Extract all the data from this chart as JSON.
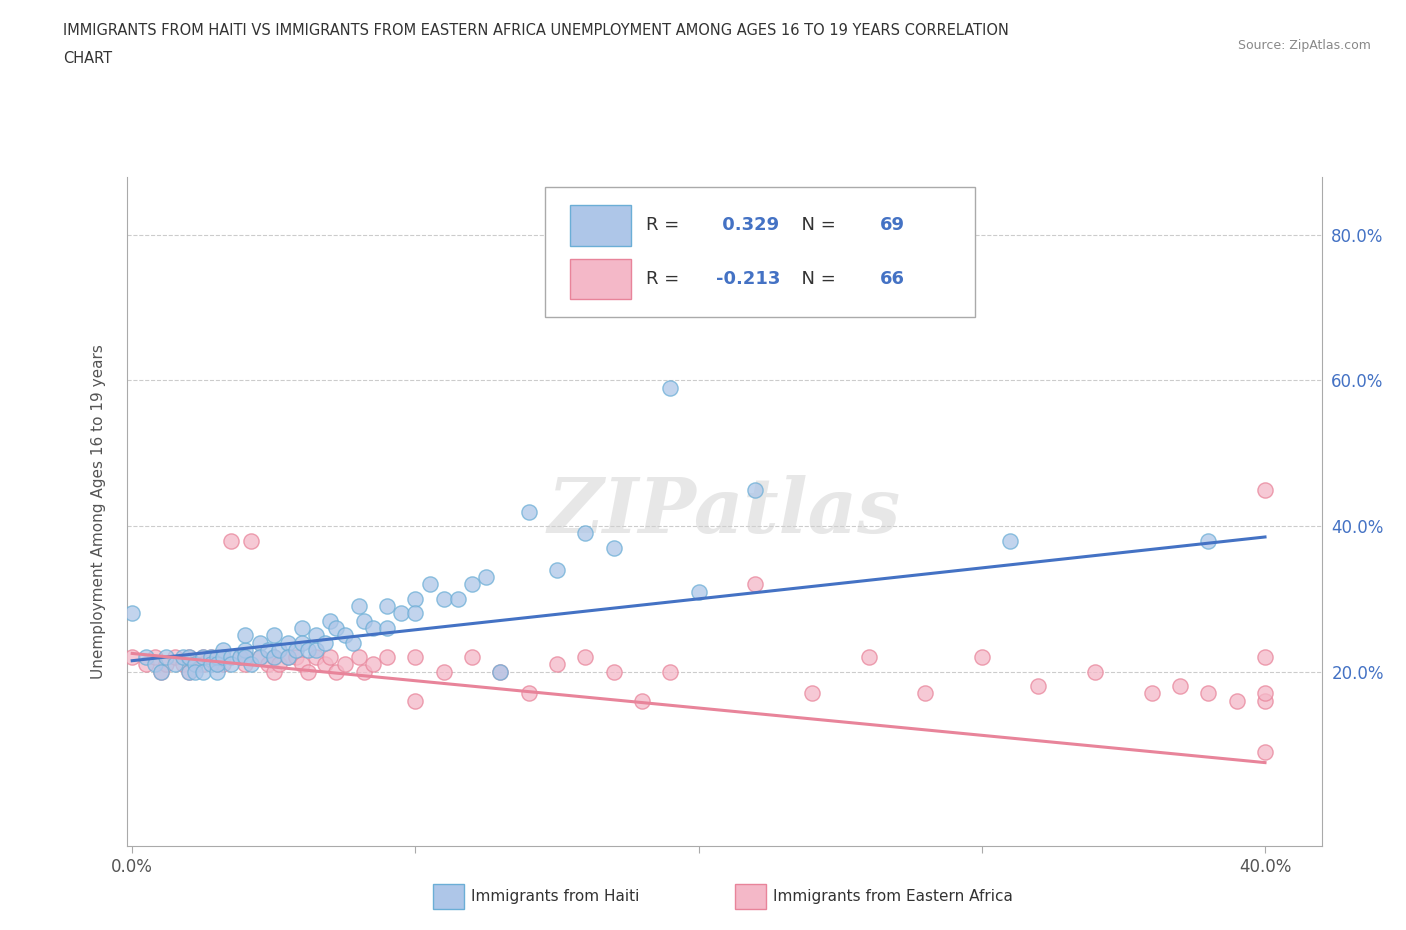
{
  "title_line1": "IMMIGRANTS FROM HAITI VS IMMIGRANTS FROM EASTERN AFRICA UNEMPLOYMENT AMONG AGES 16 TO 19 YEARS CORRELATION",
  "title_line2": "CHART",
  "source": "Source: ZipAtlas.com",
  "ylabel": "Unemployment Among Ages 16 to 19 years",
  "xlim": [
    -0.002,
    0.42
  ],
  "ylim": [
    -0.04,
    0.88
  ],
  "xtick_positions": [
    0.0,
    0.1,
    0.2,
    0.3,
    0.4
  ],
  "xtick_labels": [
    "0.0%",
    "",
    "",
    "",
    "40.0%"
  ],
  "ytick_positions": [
    0.2,
    0.4,
    0.6,
    0.8
  ],
  "ytick_labels": [
    "20.0%",
    "40.0%",
    "60.0%",
    "80.0%"
  ],
  "R_haiti": 0.329,
  "N_haiti": 69,
  "R_east_africa": -0.213,
  "N_east_africa": 66,
  "haiti_color": "#aec6e8",
  "haiti_edge_color": "#6baed6",
  "haiti_line_color": "#4472c4",
  "east_africa_color": "#f4b8c8",
  "east_africa_edge_color": "#e8849a",
  "east_africa_line_color": "#e8849a",
  "watermark": "ZIPatlas",
  "legend_label_haiti": "Immigrants from Haiti",
  "legend_label_east_africa": "Immigrants from Eastern Africa",
  "haiti_scatter_x": [
    0.0,
    0.005,
    0.008,
    0.01,
    0.012,
    0.015,
    0.018,
    0.02,
    0.02,
    0.022,
    0.022,
    0.025,
    0.025,
    0.028,
    0.028,
    0.03,
    0.03,
    0.03,
    0.032,
    0.032,
    0.035,
    0.035,
    0.038,
    0.04,
    0.04,
    0.04,
    0.042,
    0.045,
    0.045,
    0.048,
    0.05,
    0.05,
    0.052,
    0.055,
    0.055,
    0.058,
    0.06,
    0.06,
    0.062,
    0.065,
    0.065,
    0.068,
    0.07,
    0.072,
    0.075,
    0.078,
    0.08,
    0.082,
    0.085,
    0.09,
    0.09,
    0.095,
    0.1,
    0.1,
    0.105,
    0.11,
    0.115,
    0.12,
    0.125,
    0.13,
    0.14,
    0.15,
    0.16,
    0.17,
    0.19,
    0.2,
    0.22,
    0.31,
    0.38
  ],
  "haiti_scatter_y": [
    0.28,
    0.22,
    0.21,
    0.2,
    0.22,
    0.21,
    0.22,
    0.2,
    0.22,
    0.21,
    0.2,
    0.22,
    0.2,
    0.22,
    0.21,
    0.22,
    0.2,
    0.21,
    0.23,
    0.22,
    0.22,
    0.21,
    0.22,
    0.23,
    0.25,
    0.22,
    0.21,
    0.24,
    0.22,
    0.23,
    0.25,
    0.22,
    0.23,
    0.24,
    0.22,
    0.23,
    0.26,
    0.24,
    0.23,
    0.25,
    0.23,
    0.24,
    0.27,
    0.26,
    0.25,
    0.24,
    0.29,
    0.27,
    0.26,
    0.29,
    0.26,
    0.28,
    0.3,
    0.28,
    0.32,
    0.3,
    0.3,
    0.32,
    0.33,
    0.2,
    0.42,
    0.34,
    0.39,
    0.37,
    0.59,
    0.31,
    0.45,
    0.38,
    0.38
  ],
  "east_africa_scatter_x": [
    0.0,
    0.005,
    0.008,
    0.01,
    0.012,
    0.015,
    0.018,
    0.02,
    0.02,
    0.022,
    0.025,
    0.025,
    0.028,
    0.03,
    0.03,
    0.032,
    0.035,
    0.038,
    0.04,
    0.04,
    0.042,
    0.045,
    0.048,
    0.05,
    0.05,
    0.052,
    0.055,
    0.058,
    0.06,
    0.062,
    0.065,
    0.068,
    0.07,
    0.072,
    0.075,
    0.08,
    0.082,
    0.085,
    0.09,
    0.1,
    0.1,
    0.11,
    0.12,
    0.13,
    0.14,
    0.15,
    0.16,
    0.17,
    0.18,
    0.19,
    0.22,
    0.24,
    0.26,
    0.28,
    0.3,
    0.32,
    0.34,
    0.36,
    0.37,
    0.38,
    0.39,
    0.4,
    0.4,
    0.4,
    0.4,
    0.4
  ],
  "east_africa_scatter_y": [
    0.22,
    0.21,
    0.22,
    0.2,
    0.21,
    0.22,
    0.21,
    0.22,
    0.2,
    0.21,
    0.22,
    0.21,
    0.22,
    0.21,
    0.22,
    0.21,
    0.38,
    0.22,
    0.22,
    0.21,
    0.38,
    0.22,
    0.21,
    0.22,
    0.2,
    0.21,
    0.22,
    0.22,
    0.21,
    0.2,
    0.22,
    0.21,
    0.22,
    0.2,
    0.21,
    0.22,
    0.2,
    0.21,
    0.22,
    0.22,
    0.16,
    0.2,
    0.22,
    0.2,
    0.17,
    0.21,
    0.22,
    0.2,
    0.16,
    0.2,
    0.32,
    0.17,
    0.22,
    0.17,
    0.22,
    0.18,
    0.2,
    0.17,
    0.18,
    0.17,
    0.16,
    0.45,
    0.22,
    0.16,
    0.17,
    0.09
  ],
  "haiti_trend_x": [
    0.0,
    0.4
  ],
  "haiti_trend_y_start": 0.215,
  "haiti_trend_y_end": 0.385,
  "east_africa_trend_y_start": 0.225,
  "east_africa_trend_y_end": 0.075
}
